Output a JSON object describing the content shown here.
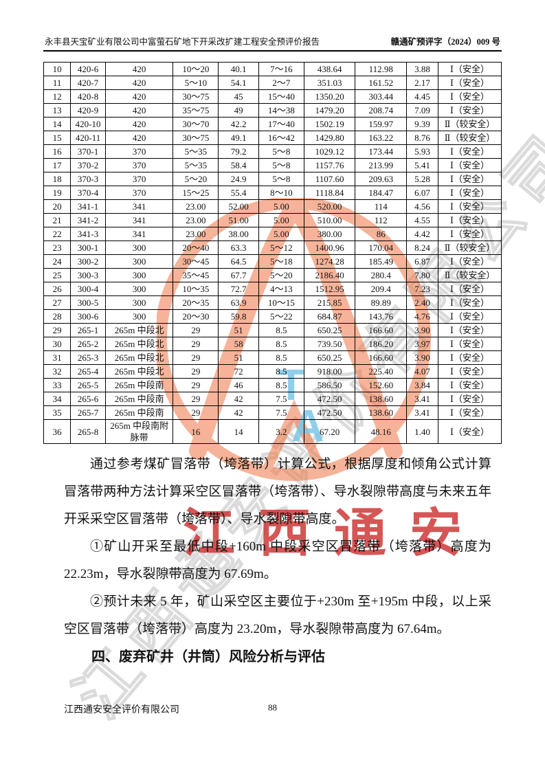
{
  "header": {
    "title_left": "永丰县天宝矿业有限公司中富萤石矿地下开采改扩建工程安全预评价报告",
    "title_right": "赣通矿预评字（2024）009 号"
  },
  "table": {
    "rows": [
      [
        "10",
        "420-6",
        "420",
        "10～20",
        "40.1",
        "7～16",
        "438.64",
        "112.98",
        "3.88",
        "Ⅰ（安全）"
      ],
      [
        "11",
        "420-7",
        "420",
        "5～10",
        "54.1",
        "2～7",
        "351.03",
        "161.52",
        "2.17",
        "Ⅰ（安全）"
      ],
      [
        "12",
        "420-8",
        "420",
        "30～75",
        "45",
        "15～40",
        "1350.20",
        "303.44",
        "4.45",
        "Ⅰ（安全）"
      ],
      [
        "13",
        "420-9",
        "420",
        "35～75",
        "49",
        "14～38",
        "1479.20",
        "208.74",
        "7.09",
        "Ⅰ（安全）"
      ],
      [
        "14",
        "420-10",
        "420",
        "30～70",
        "42.2",
        "17～40",
        "1502.19",
        "159.97",
        "9.39",
        "Ⅱ（较安全）"
      ],
      [
        "15",
        "420-11",
        "420",
        "30～75",
        "49.1",
        "16～42",
        "1429.80",
        "163.22",
        "8.76",
        "Ⅱ（较安全）"
      ],
      [
        "16",
        "370-1",
        "370",
        "5～35",
        "79.2",
        "5～8",
        "1029.12",
        "173.44",
        "5.93",
        "Ⅰ（安全）"
      ],
      [
        "17",
        "370-2",
        "370",
        "5～35",
        "58.4",
        "5～8",
        "1157.76",
        "213.99",
        "5.41",
        "Ⅰ（安全）"
      ],
      [
        "18",
        "370-3",
        "370",
        "5～20",
        "24.9",
        "5～8",
        "1107.60",
        "209.63",
        "5.28",
        "Ⅰ（安全）"
      ],
      [
        "19",
        "370-4",
        "370",
        "15～25",
        "55.4",
        "8～10",
        "1118.84",
        "184.47",
        "6.07",
        "Ⅰ（安全）"
      ],
      [
        "20",
        "341-1",
        "341",
        "23.00",
        "52.00",
        "5.00",
        "520.00",
        "114",
        "4.56",
        "Ⅰ（安全）"
      ],
      [
        "21",
        "341-2",
        "341",
        "23.00",
        "51.00",
        "5.00",
        "510.00",
        "112",
        "4.55",
        "Ⅰ（安全）"
      ],
      [
        "22",
        "341-3",
        "341",
        "23.00",
        "38.00",
        "5.00",
        "380.00",
        "86",
        "4.42",
        "Ⅰ（安全）"
      ],
      [
        "23",
        "300-1",
        "300",
        "20～40",
        "63.3",
        "5～12",
        "1400.96",
        "170.04",
        "8.24",
        "Ⅱ（较安全）"
      ],
      [
        "24",
        "300-2",
        "300",
        "30～45",
        "64.5",
        "5～18",
        "1274.28",
        "185.49",
        "6.87",
        "Ⅰ（安全）"
      ],
      [
        "25",
        "300-3",
        "300",
        "35～45",
        "67.7",
        "5～20",
        "2186.40",
        "280.4",
        "7.80",
        "Ⅱ（较安全）"
      ],
      [
        "26",
        "300-4",
        "300",
        "10～35",
        "72.7",
        "4～13",
        "1512.95",
        "209.4",
        "7.23",
        "Ⅰ（安全）"
      ],
      [
        "27",
        "300-5",
        "300",
        "20～35",
        "63.9",
        "10～15",
        "215.85",
        "89.89",
        "2.40",
        "Ⅰ（安全）"
      ],
      [
        "28",
        "300-6",
        "300",
        "20～30",
        "59.8",
        "5～22",
        "684.87",
        "143.76",
        "4.76",
        "Ⅰ（安全）"
      ],
      [
        "29",
        "265-1",
        "265m 中段北",
        "29",
        "51",
        "8.5",
        "650.25",
        "166.60",
        "3.90",
        "Ⅰ（安全）"
      ],
      [
        "30",
        "265-2",
        "265m 中段北",
        "29",
        "58",
        "8.5",
        "739.50",
        "186.20",
        "3.97",
        "Ⅰ（安全）"
      ],
      [
        "31",
        "265-3",
        "265m 中段北",
        "29",
        "51",
        "8.5",
        "650.25",
        "166.60",
        "3.90",
        "Ⅰ（安全）"
      ],
      [
        "32",
        "265-4",
        "265m 中段北",
        "29",
        "72",
        "8.5",
        "918.00",
        "225.40",
        "4.07",
        "Ⅰ（安全）"
      ],
      [
        "33",
        "265-5",
        "265m 中段南",
        "29",
        "46",
        "8.5",
        "586.50",
        "152.60",
        "3.84",
        "Ⅰ（安全）"
      ],
      [
        "34",
        "265-6",
        "265m 中段南",
        "29",
        "42",
        "7.5",
        "472.50",
        "138.60",
        "3.41",
        "Ⅰ（安全）"
      ],
      [
        "35",
        "265-7",
        "265m 中段南",
        "29",
        "42",
        "7.5",
        "472.50",
        "138.60",
        "3.41",
        "Ⅰ（安全）"
      ],
      [
        "36",
        "265-8",
        "265m 中段南附脉带",
        "16",
        "14",
        "3.2",
        "67.20",
        "48.16",
        "1.40",
        "Ⅰ（安全）"
      ]
    ]
  },
  "paragraphs": [
    "通过参考煤矿冒落带（垮落带）计算公式，根据厚度和倾角公式计算冒落带两种方法计算采空区冒落带（垮落带）、导水裂隙带高度与未来五年开采采空区冒落带（垮落带）、导水裂隙带高度。",
    "①矿山开采至最低中段+160m 中段采空区冒落带（垮落带）高度为22.23m，导水裂隙带高度为 67.69m。",
    "②预计未来 5 年，矿山采空区主要位于+230m 至+195m 中段，以上采空区冒落带（垮落带）高度为 23.20m，导水裂隙带高度为 67.64m。"
  ],
  "section_heading": "四、废弃矿井（井筒）风险分析与评估",
  "footer": {
    "company": "江西通安安全评价有限公司",
    "page_number": "88"
  },
  "watermark": {
    "brand_text": "江西通安",
    "diagonal_text": "江西通安评价有限公司",
    "logo_letter_t": "T",
    "logo_letter_a": "A",
    "colors": {
      "red": "#cc2a2a",
      "orange": "#ee6a35",
      "blue": "#7dc7e7",
      "gray_outline": "#878787"
    }
  }
}
